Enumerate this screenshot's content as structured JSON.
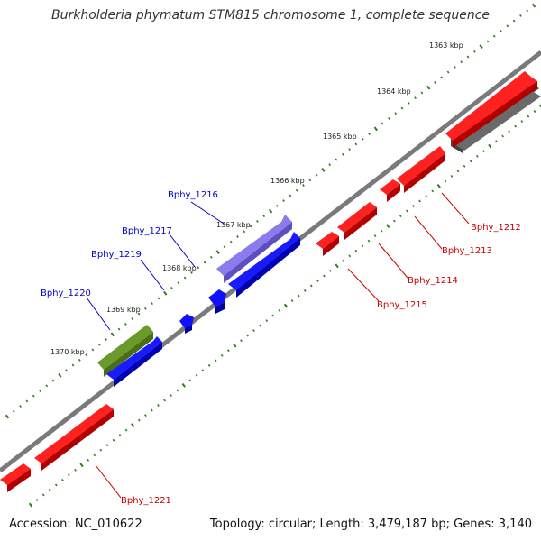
{
  "title": "Burkholderia phymatum STM815 chromosome 1, complete sequence",
  "footer": {
    "accession": "Accession: NC_010622",
    "summary": "Topology: circular; Length: 3,479,187 bp; Genes: 3,140"
  },
  "scale_labels": [
    "1363 kbp",
    "1364 kbp",
    "1365 kbp",
    "1366 kbp",
    "1367 kbp",
    "1368 kbp",
    "1369 kbp",
    "1370 kbp"
  ],
  "colors": {
    "backbone": "#7a7a7a",
    "forward_gene": "#ff0000",
    "reverse_gene": "#0000ff",
    "gray_feature": "#555555",
    "purple_feature": "#7d6be0",
    "olive_feature": "#5a8a1c",
    "tick": "#2e7d1a",
    "forward_label": "#cc0000",
    "reverse_label": "#0000cc"
  },
  "gene_labels": {
    "reverse": [
      "Bphy_1216",
      "Bphy_1217",
      "Bphy_1219",
      "Bphy_1220"
    ],
    "forward": [
      "Bphy_1212",
      "Bphy_1213",
      "Bphy_1214",
      "Bphy_1215",
      "Bphy_1221"
    ]
  }
}
